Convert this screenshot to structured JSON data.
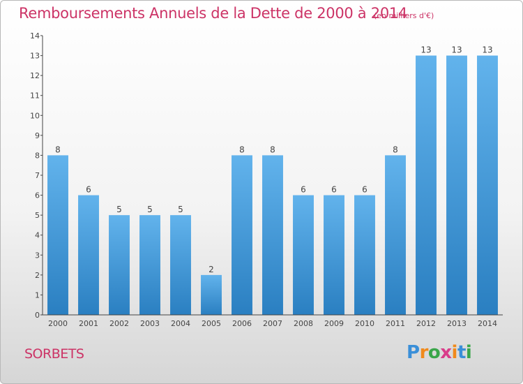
{
  "title": "Remboursements Annuels de la Dette de 2000 à 2014",
  "title_unit": "(en milliers d'€)",
  "commune": "SORBETS",
  "logo": {
    "text": "Proxiti",
    "letter_colors": [
      "#3a8fd8",
      "#f08a1c",
      "#3aa64a",
      "#d93d8a",
      "#f08a1c",
      "#3a8fd8",
      "#3aa64a"
    ]
  },
  "colors": {
    "title": "#cc3366",
    "bar_light": "#62b3ec",
    "bar_dark": "#2a7fc1",
    "axis": "#444444",
    "label": "#444444"
  },
  "chart_data": {
    "type": "bar",
    "categories": [
      "2000",
      "2001",
      "2002",
      "2003",
      "2004",
      "2005",
      "2006",
      "2007",
      "2008",
      "2009",
      "2010",
      "2011",
      "2012",
      "2013",
      "2014"
    ],
    "values": [
      8,
      6,
      5,
      5,
      5,
      2,
      8,
      8,
      6,
      6,
      6,
      8,
      13,
      13,
      13
    ],
    "data_labels": [
      "8",
      "6",
      "5",
      "5",
      "5",
      "2",
      "8",
      "8",
      "6",
      "6",
      "6",
      "8",
      "13",
      "13",
      "13"
    ],
    "yticks": [
      0,
      1,
      2,
      3,
      4,
      5,
      6,
      7,
      8,
      9,
      10,
      11,
      12,
      13,
      14
    ],
    "ylim": [
      0,
      14
    ],
    "xlabel": "",
    "ylabel": "",
    "grid": false,
    "legend": "none"
  }
}
